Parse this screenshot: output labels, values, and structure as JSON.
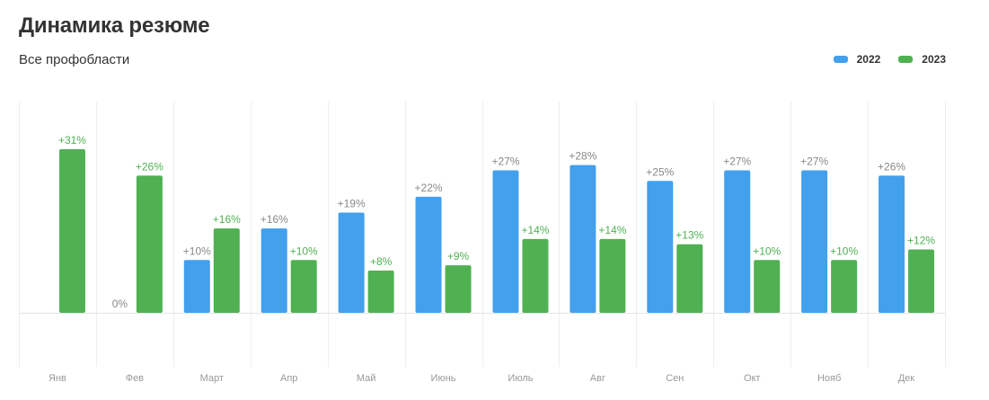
{
  "header": {
    "title": "Динамика резюме",
    "subtitle": "Все профобласти"
  },
  "legend": [
    {
      "label": "2022",
      "color": "#42a0ed"
    },
    {
      "label": "2023",
      "color": "#4fb152"
    }
  ],
  "colors": {
    "series_2022": "#42a0ed",
    "series_2023": "#4fb152",
    "label_2022": "#888888",
    "label_2023": "#4fb152",
    "axis_label": "#999999",
    "grid": "#eeeeee",
    "baseline": "#e4e4e4"
  },
  "chart_data": {
    "type": "bar",
    "title": "Динамика резюме",
    "subtitle": "Все профобласти",
    "categories": [
      "Янв",
      "Фев",
      "Март",
      "Апр",
      "Май",
      "Июнь",
      "Июль",
      "Авг",
      "Сен",
      "Окт",
      "Нояб",
      "Дек"
    ],
    "series": [
      {
        "name": "2022",
        "values": [
          null,
          0,
          10,
          16,
          19,
          22,
          27,
          28,
          25,
          27,
          27,
          26
        ],
        "labels": [
          "",
          "0%",
          "+10%",
          "+16%",
          "+19%",
          "+22%",
          "+27%",
          "+28%",
          "+25%",
          "+27%",
          "+27%",
          "+26%"
        ]
      },
      {
        "name": "2023",
        "values": [
          31,
          26,
          16,
          10,
          8,
          9,
          14,
          14,
          13,
          10,
          10,
          12
        ],
        "labels": [
          "+31%",
          "+26%",
          "+16%",
          "+10%",
          "+8%",
          "+9%",
          "+14%",
          "+14%",
          "+13%",
          "+10%",
          "+10%",
          "+12%"
        ]
      }
    ],
    "ylim": [
      -10,
      40
    ],
    "grid": "vertical separators",
    "legend_position": "top-right"
  }
}
